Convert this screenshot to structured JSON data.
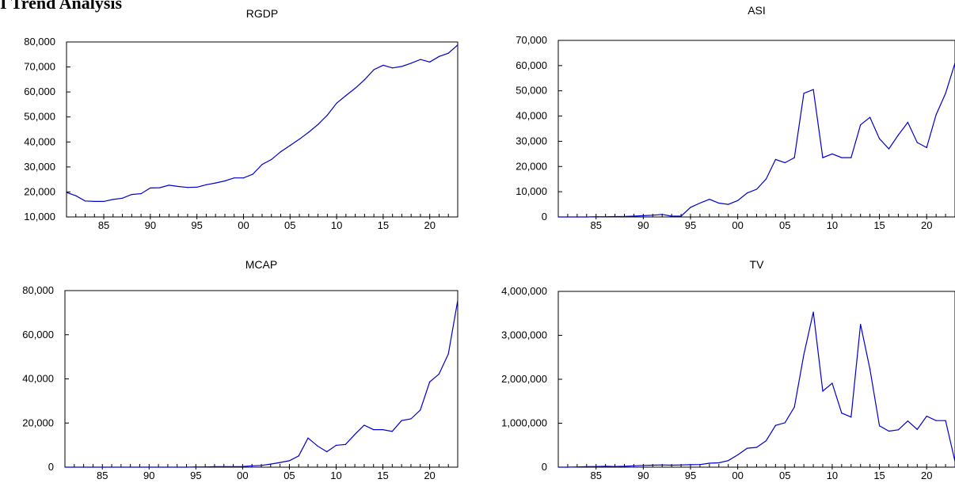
{
  "page": {
    "heading": "I Trend Analysis"
  },
  "chart_data": [
    {
      "type": "line",
      "title": "RGDP",
      "xlabel": "",
      "ylabel": "",
      "x_tick_labels": [
        "85",
        "90",
        "95",
        "00",
        "05",
        "10",
        "15",
        "20"
      ],
      "y_tick_labels": [
        "10,000",
        "20,000",
        "30,000",
        "40,000",
        "50,000",
        "60,000",
        "70,000",
        "80,000"
      ],
      "ylim": [
        10000,
        80000
      ],
      "xlim": [
        1981,
        2023
      ],
      "grid": false,
      "line_color": "#0000cc",
      "x": [
        1981,
        1982,
        1983,
        1984,
        1985,
        1986,
        1987,
        1988,
        1989,
        1990,
        1991,
        1992,
        1993,
        1994,
        1995,
        1996,
        1997,
        1998,
        1999,
        2000,
        2001,
        2002,
        2003,
        2004,
        2005,
        2006,
        2007,
        2008,
        2009,
        2010,
        2011,
        2012,
        2013,
        2014,
        2015,
        2016,
        2017,
        2018,
        2019,
        2020,
        2021,
        2022,
        2023
      ],
      "values": [
        19800,
        18500,
        16400,
        16200,
        16200,
        17000,
        17500,
        19000,
        19300,
        21600,
        21700,
        22700,
        22200,
        21800,
        21900,
        22900,
        23600,
        24400,
        25600,
        25600,
        27100,
        31000,
        33000,
        36100,
        38600,
        41100,
        43900,
        47000,
        50700,
        55500,
        58600,
        61500,
        64900,
        68900,
        70700,
        69600,
        70200,
        71500,
        73000,
        72000,
        74200,
        75500,
        78800
      ]
    },
    {
      "type": "line",
      "title": "ASI",
      "xlabel": "",
      "ylabel": "",
      "x_tick_labels": [
        "85",
        "90",
        "95",
        "00",
        "05",
        "10",
        "15",
        "20"
      ],
      "y_tick_labels": [
        "0",
        "10,000",
        "20,000",
        "30,000",
        "40,000",
        "50,000",
        "60,000",
        "70,000"
      ],
      "ylim": [
        0,
        70000
      ],
      "xlim": [
        1981,
        2023
      ],
      "grid": false,
      "line_color": "#0000cc",
      "x": [
        1981,
        1982,
        1983,
        1984,
        1985,
        1986,
        1987,
        1988,
        1989,
        1990,
        1991,
        1992,
        1993,
        1994,
        1995,
        1996,
        1997,
        1998,
        1999,
        2000,
        2001,
        2002,
        2003,
        2004,
        2005,
        2006,
        2007,
        2008,
        2009,
        2010,
        2011,
        2012,
        2013,
        2014,
        2015,
        2016,
        2017,
        2018,
        2019,
        2020,
        2021,
        2022,
        2023
      ],
      "values": [
        0,
        0,
        0,
        0,
        100,
        100,
        150,
        200,
        300,
        500,
        700,
        1000,
        300,
        300,
        3800,
        5500,
        7000,
        5500,
        5000,
        6500,
        9500,
        11000,
        15000,
        22800,
        21500,
        23500,
        49000,
        50500,
        23500,
        25000,
        23500,
        23500,
        36500,
        39500,
        31000,
        27000,
        32500,
        37500,
        29500,
        27500,
        40500,
        49000,
        61000
      ]
    },
    {
      "type": "line",
      "title": "MCAP",
      "xlabel": "",
      "ylabel": "",
      "x_tick_labels": [
        "85",
        "90",
        "95",
        "00",
        "05",
        "10",
        "15",
        "20"
      ],
      "y_tick_labels": [
        "0",
        "20,000",
        "40,000",
        "60,000",
        "80,000"
      ],
      "ylim": [
        0,
        80000
      ],
      "xlim": [
        1981,
        2023
      ],
      "grid": false,
      "line_color": "#0000cc",
      "x": [
        1981,
        1982,
        1983,
        1984,
        1985,
        1986,
        1987,
        1988,
        1989,
        1990,
        1991,
        1992,
        1993,
        1994,
        1995,
        1996,
        1997,
        1998,
        1999,
        2000,
        2001,
        2002,
        2003,
        2004,
        2005,
        2006,
        2007,
        2008,
        2009,
        2010,
        2011,
        2012,
        2013,
        2014,
        2015,
        2016,
        2017,
        2018,
        2019,
        2020,
        2021,
        2022,
        2023
      ],
      "values": [
        0,
        0,
        0,
        0,
        0,
        0,
        0,
        0,
        0,
        0,
        0,
        0,
        0,
        0,
        100,
        100,
        200,
        200,
        200,
        300,
        600,
        800,
        1400,
        2100,
        2900,
        5100,
        13200,
        9600,
        7000,
        9900,
        10300,
        14800,
        19000,
        17000,
        17000,
        16200,
        21100,
        21900,
        25900,
        38600,
        42200,
        51300,
        75500
      ]
    },
    {
      "type": "line",
      "title": "TV",
      "xlabel": "",
      "ylabel": "",
      "x_tick_labels": [
        "85",
        "90",
        "95",
        "00",
        "05",
        "10",
        "15",
        "20"
      ],
      "y_tick_labels": [
        "0",
        "1,000,000",
        "2,000,000",
        "3,000,000",
        "4,000,000"
      ],
      "ylim": [
        0,
        4000000
      ],
      "xlim": [
        1981,
        2023
      ],
      "grid": false,
      "line_color": "#0000cc",
      "x": [
        1981,
        1982,
        1983,
        1984,
        1985,
        1986,
        1987,
        1988,
        1989,
        1990,
        1991,
        1992,
        1993,
        1994,
        1995,
        1996,
        1997,
        1998,
        1999,
        2000,
        2001,
        2002,
        2003,
        2004,
        2005,
        2006,
        2007,
        2008,
        2009,
        2010,
        2011,
        2012,
        2013,
        2014,
        2015,
        2016,
        2017,
        2018,
        2019,
        2020,
        2021,
        2022,
        2023
      ],
      "values": [
        0,
        0,
        5000,
        10000,
        15000,
        20000,
        15000,
        20000,
        30000,
        40000,
        45000,
        50000,
        45000,
        50000,
        55000,
        60000,
        90000,
        100000,
        150000,
        280000,
        430000,
        450000,
        600000,
        950000,
        1010000,
        1370000,
        2560000,
        3530000,
        1730000,
        1910000,
        1230000,
        1140000,
        3250000,
        2230000,
        940000,
        820000,
        850000,
        1050000,
        860000,
        1160000,
        1060000,
        1060000,
        130000
      ]
    }
  ]
}
